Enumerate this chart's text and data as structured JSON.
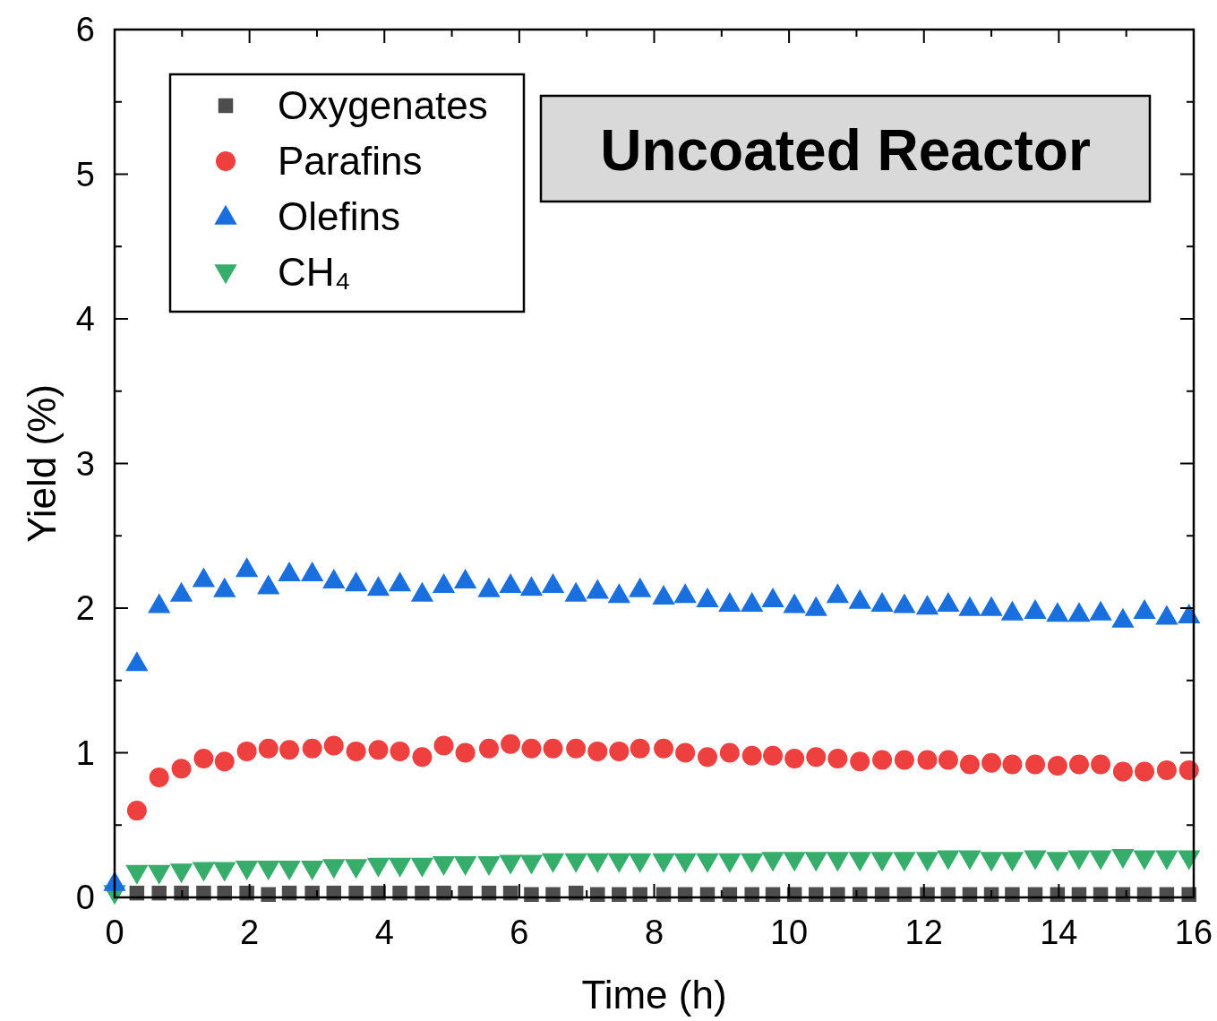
{
  "chart_data": {
    "type": "scatter",
    "title": "Uncoated Reactor",
    "xlabel": "Time (h)",
    "ylabel": "Yield (%)",
    "x": [
      0,
      0.33,
      0.66,
      0.99,
      1.32,
      1.63,
      1.96,
      2.28,
      2.59,
      2.93,
      3.25,
      3.58,
      3.91,
      4.23,
      4.56,
      4.88,
      5.2,
      5.55,
      5.87,
      6.18,
      6.5,
      6.84,
      7.16,
      7.48,
      7.79,
      8.14,
      8.46,
      8.79,
      9.12,
      9.45,
      9.76,
      10.08,
      10.4,
      10.72,
      11.05,
      11.38,
      11.71,
      12.05,
      12.36,
      12.68,
      13,
      13.31,
      13.65,
      13.98,
      14.3,
      14.62,
      14.95,
      15.27,
      15.6,
      15.93
    ],
    "series": [
      {
        "name": "Oxygenates",
        "color": "#4d4d4d",
        "marker": "square",
        "values": [
          null,
          0.03,
          0.03,
          0.03,
          0.03,
          0.03,
          0.03,
          0.02,
          0.03,
          0.03,
          0.03,
          0.03,
          0.03,
          0.03,
          0.03,
          0.03,
          0.03,
          0.03,
          0.03,
          0.02,
          0.02,
          0.03,
          0.02,
          0.02,
          0.02,
          0.02,
          0.02,
          0.02,
          0.02,
          0.02,
          0.02,
          0.02,
          0.02,
          0.02,
          0.02,
          0.02,
          0.02,
          0.02,
          0.02,
          0.02,
          0.02,
          0.02,
          0.02,
          0.02,
          0.02,
          0.02,
          0.02,
          0.02,
          0.02,
          0.02
        ]
      },
      {
        "name": "Parafins",
        "color": "#ef4040",
        "marker": "circle",
        "values": [
          null,
          0.6,
          0.83,
          0.89,
          0.96,
          0.94,
          1.01,
          1.03,
          1.02,
          1.03,
          1.05,
          1.01,
          1.02,
          1.01,
          0.97,
          1.05,
          1.0,
          1.03,
          1.06,
          1.03,
          1.03,
          1.03,
          1.01,
          1.01,
          1.03,
          1.03,
          1.0,
          0.97,
          1.0,
          0.98,
          0.98,
          0.96,
          0.97,
          0.96,
          0.94,
          0.95,
          0.95,
          0.95,
          0.95,
          0.92,
          0.93,
          0.92,
          0.92,
          0.91,
          0.92,
          0.92,
          0.87,
          0.87,
          0.88,
          0.88
        ]
      },
      {
        "name": "Olefins",
        "color": "#1a6fdf",
        "marker": "triangle",
        "values": [
          0.1,
          1.62,
          2.02,
          2.1,
          2.2,
          2.13,
          2.27,
          2.15,
          2.24,
          2.24,
          2.19,
          2.17,
          2.14,
          2.17,
          2.1,
          2.16,
          2.19,
          2.13,
          2.16,
          2.14,
          2.16,
          2.1,
          2.12,
          2.09,
          2.13,
          2.08,
          2.09,
          2.06,
          2.03,
          2.03,
          2.06,
          2.02,
          2.0,
          2.09,
          2.05,
          2.03,
          2.02,
          2.01,
          2.03,
          2.0,
          2.0,
          1.97,
          1.98,
          1.96,
          1.96,
          1.97,
          1.92,
          1.98,
          1.94,
          1.95
        ]
      },
      {
        "name": "CH₄",
        "color": "#37ad6b",
        "marker": "triangle-down",
        "values": [
          0.03,
          0.17,
          0.17,
          0.18,
          0.19,
          0.19,
          0.2,
          0.2,
          0.2,
          0.2,
          0.21,
          0.21,
          0.22,
          0.22,
          0.22,
          0.23,
          0.23,
          0.23,
          0.24,
          0.24,
          0.25,
          0.25,
          0.25,
          0.25,
          0.25,
          0.25,
          0.25,
          0.25,
          0.25,
          0.25,
          0.26,
          0.26,
          0.26,
          0.26,
          0.26,
          0.26,
          0.26,
          0.26,
          0.27,
          0.27,
          0.26,
          0.26,
          0.27,
          0.26,
          0.27,
          0.27,
          0.28,
          0.27,
          0.27,
          0.27
        ]
      }
    ],
    "xlim": [
      0,
      16
    ],
    "ylim": [
      0,
      6
    ],
    "xticks": [
      0,
      {
        "value": 1,
        "label": null
      },
      2,
      {
        "value": 3,
        "label": null
      },
      4,
      {
        "value": 5,
        "label": null
      },
      6,
      {
        "value": 7,
        "label": null
      },
      8,
      {
        "value": 9,
        "label": null
      },
      10,
      {
        "value": 11,
        "label": null
      },
      12,
      {
        "value": 13,
        "label": null
      },
      14,
      {
        "value": 15,
        "label": null
      },
      16
    ],
    "yticks": [
      0,
      {
        "value": 0.5,
        "label": null
      },
      1,
      {
        "value": 1.5,
        "label": null
      },
      2,
      {
        "value": 2.5,
        "label": null
      },
      3,
      {
        "value": 3.5,
        "label": null
      },
      4,
      {
        "value": 4.5,
        "label": null
      },
      5,
      {
        "value": 5.5,
        "label": null
      },
      6
    ],
    "legend": "top left",
    "grid": false
  }
}
